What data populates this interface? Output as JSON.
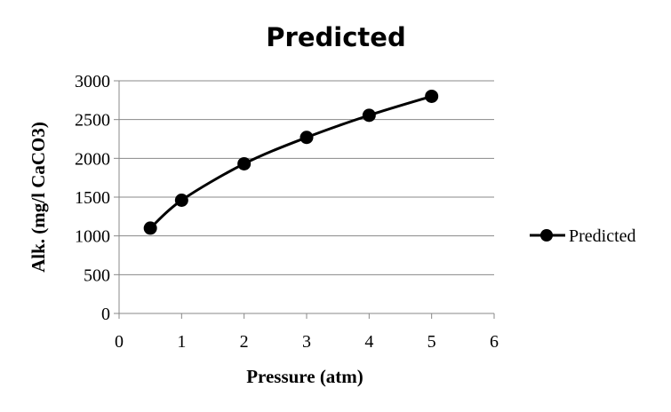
{
  "chart_data": {
    "type": "line",
    "title": "Predicted",
    "xlabel": "Pressure (atm)",
    "ylabel": "Alk. (mg/l CaCO3)",
    "xlim": [
      0,
      6
    ],
    "ylim": [
      0,
      3000
    ],
    "x_ticks": [
      "0",
      "1",
      "2",
      "3",
      "4",
      "5",
      "6"
    ],
    "y_ticks": [
      "0",
      "500",
      "1000",
      "1500",
      "2000",
      "2500",
      "3000"
    ],
    "grid": "horizontal",
    "legend_position": "right",
    "line_style": "smoothed with circle markers",
    "colors": {
      "series": "#000000",
      "grid": "#888888"
    },
    "series": [
      {
        "name": "Predicted",
        "x": [
          0.5,
          1,
          2,
          3,
          4,
          5
        ],
        "values": [
          1100,
          1460,
          1930,
          2270,
          2555,
          2800
        ]
      }
    ]
  }
}
